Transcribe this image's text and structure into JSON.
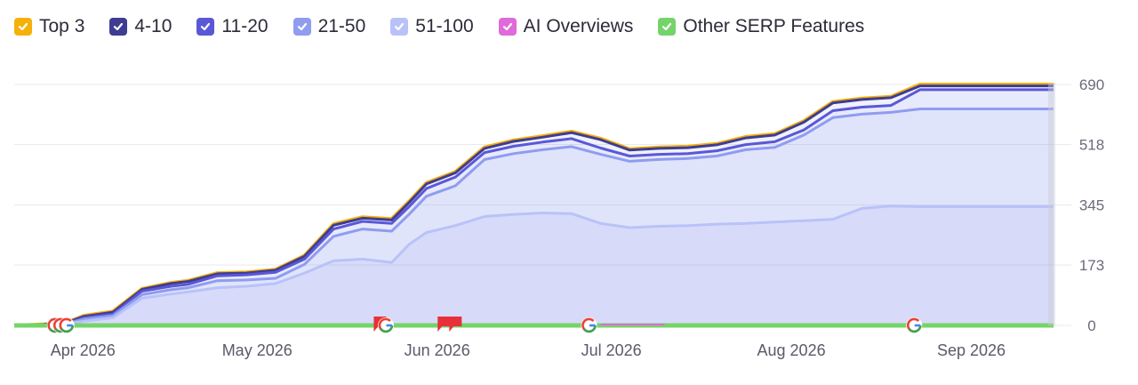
{
  "legend": [
    {
      "label": "Top 3",
      "color": "#f5b10a",
      "icon": "check-icon"
    },
    {
      "label": "4-10",
      "color": "#3f3c94",
      "icon": "check-icon"
    },
    {
      "label": "11-20",
      "color": "#5a58d6",
      "icon": "check-icon"
    },
    {
      "label": "21-50",
      "color": "#8f9cf0",
      "icon": "check-icon"
    },
    {
      "label": "51-100",
      "color": "#b9c2f8",
      "icon": "check-icon"
    },
    {
      "label": "AI Overviews",
      "color": "#e06ad9",
      "icon": "check-icon"
    },
    {
      "label": "Other SERP Features",
      "color": "#74d46a",
      "icon": "check-icon"
    }
  ],
  "chart_data": {
    "type": "area",
    "x_type": "date",
    "y_axis_position": "right",
    "ylim": [
      0,
      690
    ],
    "yticks": [
      0,
      173,
      345,
      518,
      690
    ],
    "ytick_labels": [
      "0",
      "173",
      "345",
      "518",
      "690"
    ],
    "xticks": [
      "2026-04-01",
      "2026-05-01",
      "2026-06-01",
      "2026-07-01",
      "2026-08-01",
      "2026-09-01"
    ],
    "xtick_labels": [
      "Apr 2026",
      "May 2026",
      "Jun 2026",
      "Jul 2026",
      "Aug 2026",
      "Sep 2026"
    ],
    "grid": true,
    "x": [
      "2026-03-22",
      "2026-03-27",
      "2026-03-31",
      "2026-04-03",
      "2026-04-08",
      "2026-04-13",
      "2026-04-18",
      "2026-04-21",
      "2026-04-26",
      "2026-05-01",
      "2026-05-06",
      "2026-05-11",
      "2026-05-16",
      "2026-05-21",
      "2026-05-26",
      "2026-05-29",
      "2026-06-01",
      "2026-06-06",
      "2026-06-11",
      "2026-06-16",
      "2026-06-21",
      "2026-06-26",
      "2026-07-01",
      "2026-07-06",
      "2026-07-11",
      "2026-07-16",
      "2026-07-21",
      "2026-07-26",
      "2026-07-31",
      "2026-08-05",
      "2026-08-10",
      "2026-08-15",
      "2026-08-20",
      "2026-08-25",
      "2026-08-30",
      "2026-09-04",
      "2026-09-09",
      "2026-09-14",
      "2026-09-17"
    ],
    "series": [
      {
        "name": "Top 3",
        "color": "#f5b10a",
        "values": [
          0,
          3,
          8,
          28,
          40,
          105,
          122,
          128,
          150,
          152,
          160,
          200,
          290,
          310,
          305,
          355,
          408,
          440,
          510,
          530,
          542,
          555,
          535,
          505,
          510,
          512,
          520,
          540,
          548,
          585,
          640,
          650,
          655,
          690,
          690,
          690,
          690,
          690,
          690
        ]
      },
      {
        "name": "4-10",
        "color": "#3f3c94",
        "values": [
          0,
          3,
          8,
          26,
          38,
          103,
          120,
          126,
          148,
          150,
          158,
          198,
          287,
          307,
          302,
          352,
          405,
          437,
          507,
          527,
          539,
          552,
          532,
          502,
          507,
          509,
          517,
          537,
          545,
          582,
          637,
          647,
          652,
          686,
          686,
          686,
          686,
          686,
          686
        ]
      },
      {
        "name": "11-20",
        "color": "#5a58d6",
        "values": [
          0,
          2,
          6,
          22,
          32,
          98,
          112,
          118,
          142,
          145,
          152,
          190,
          276,
          298,
          292,
          340,
          392,
          425,
          495,
          513,
          525,
          535,
          508,
          485,
          490,
          492,
          500,
          518,
          526,
          560,
          615,
          625,
          630,
          675,
          675,
          675,
          675,
          675,
          675
        ]
      },
      {
        "name": "21-50",
        "color": "#8f9cf0",
        "values": [
          0,
          2,
          5,
          18,
          28,
          88,
          102,
          108,
          128,
          130,
          135,
          175,
          255,
          276,
          270,
          318,
          370,
          400,
          475,
          492,
          503,
          512,
          490,
          470,
          475,
          478,
          485,
          503,
          510,
          545,
          595,
          605,
          610,
          620,
          620,
          620,
          620,
          620,
          620
        ]
      },
      {
        "name": "51-100",
        "color": "#b9c2f8",
        "values": [
          0,
          1,
          4,
          12,
          22,
          78,
          90,
          96,
          108,
          112,
          120,
          150,
          185,
          190,
          180,
          232,
          266,
          286,
          312,
          318,
          322,
          320,
          292,
          280,
          284,
          286,
          290,
          292,
          296,
          300,
          304,
          335,
          342,
          340,
          340,
          340,
          340,
          340,
          340
        ]
      },
      {
        "name": "AI Overviews",
        "color": "#e06ad9",
        "values": [
          0,
          0,
          0,
          0,
          0,
          0,
          0,
          0,
          0,
          0,
          0,
          0,
          0,
          0,
          0,
          0,
          0,
          0,
          0,
          0,
          0,
          0,
          0,
          0,
          0,
          0,
          0,
          0,
          0,
          0,
          0,
          0,
          0,
          0,
          0,
          0,
          0,
          0,
          0
        ]
      },
      {
        "name": "Other SERP Features",
        "color": "#74d46a",
        "values": [
          0,
          0,
          0,
          0,
          0,
          0,
          0,
          0,
          0,
          0,
          0,
          0,
          0,
          0,
          0,
          0,
          0,
          0,
          0,
          0,
          0,
          0,
          0,
          0,
          0,
          0,
          0,
          0,
          0,
          0,
          0,
          0,
          0,
          0,
          0,
          0,
          0,
          0,
          0
        ]
      }
    ],
    "markers": [
      {
        "type": "google-update",
        "date": "2026-03-29"
      },
      {
        "type": "google-update",
        "date": "2026-03-30"
      },
      {
        "type": "google-update",
        "date": "2026-03-31"
      },
      {
        "type": "flag",
        "date": "2026-05-24"
      },
      {
        "type": "google-update",
        "date": "2026-05-25"
      },
      {
        "type": "flag",
        "date": "2026-06-04"
      },
      {
        "type": "flag",
        "date": "2026-06-06"
      },
      {
        "type": "google-update",
        "date": "2026-06-29"
      },
      {
        "type": "google-update",
        "date": "2026-08-24"
      }
    ]
  }
}
